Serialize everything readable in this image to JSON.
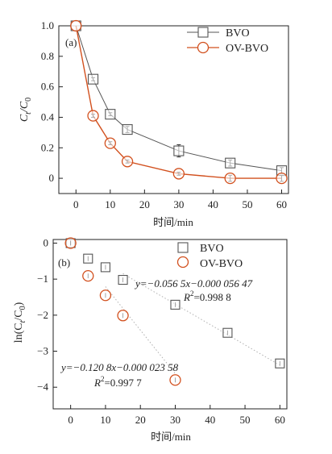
{
  "colors": {
    "bvo": "#555555",
    "ovbvo": "#d2501e",
    "fit": "#b0b0b0"
  },
  "chart_data": [
    {
      "panel": "(a)",
      "type": "line",
      "xlabel": "时间/min",
      "ylabel_parts": [
        "C",
        "t",
        "/C",
        "0"
      ],
      "xlim": [
        -5,
        62
      ],
      "ylim": [
        -0.1,
        1.0
      ],
      "xticks": [
        "0",
        "10",
        "20",
        "30",
        "40",
        "50",
        "60"
      ],
      "yticks": [
        "0",
        "0.2",
        "0.4",
        "0.6",
        "0.8",
        "1.0"
      ],
      "x": [
        0,
        5,
        10,
        15,
        30,
        45,
        60
      ],
      "series": [
        {
          "name": "BVO",
          "marker": "square",
          "values": [
            1.0,
            0.65,
            0.42,
            0.32,
            0.18,
            0.1,
            0.05
          ],
          "err": [
            0.0,
            0.01,
            0.01,
            0.02,
            0.04,
            0.02,
            0.02
          ]
        },
        {
          "name": "OV-BVO",
          "marker": "circle",
          "values": [
            1.0,
            0.41,
            0.23,
            0.11,
            0.03,
            0.0,
            0.0
          ],
          "err": [
            0.0,
            0.01,
            0.01,
            0.01,
            0.01,
            0.02,
            0.02
          ]
        }
      ]
    },
    {
      "panel": "(b)",
      "type": "scatter",
      "xlabel": "时间/min",
      "ylabel_parts": [
        "ln(C",
        "t",
        "/C",
        "0",
        ")"
      ],
      "xlim": [
        -5,
        62
      ],
      "ylim": [
        -4.6,
        0.1
      ],
      "xticks": [
        "0",
        "10",
        "20",
        "30",
        "40",
        "50",
        "60"
      ],
      "yticks": [
        "0",
        "−1",
        "−2",
        "−3",
        "−4"
      ],
      "x": [
        0,
        5,
        10,
        15,
        30,
        45,
        60
      ],
      "series": [
        {
          "name": "BVO",
          "marker": "square",
          "values": [
            0.0,
            -0.43,
            -0.67,
            -1.02,
            -1.71,
            -2.49,
            -3.34
          ],
          "fit": {
            "slope": -0.0565,
            "intercept": -5.647e-05,
            "x_range": [
              15,
              60
            ]
          }
        },
        {
          "name": "OV-BVO",
          "marker": "circle",
          "values": [
            0.0,
            -0.91,
            -1.45,
            -2.01,
            -3.8
          ],
          "fit": {
            "slope": -0.1208,
            "intercept": -2.358e-05,
            "x_range": [
              10,
              30
            ]
          }
        }
      ],
      "annotations": {
        "bvo_eq": "y=−0.056 5x−0.000 056 47",
        "bvo_r2_prefix": "R",
        "bvo_r2_sup": "2",
        "bvo_r2_value": "=0.998 8",
        "ov_eq": "y=−0.120 8x−0.000 023 58",
        "ov_r2_prefix": "R",
        "ov_r2_sup": "2",
        "ov_r2_value": "=0.997 7"
      }
    }
  ]
}
